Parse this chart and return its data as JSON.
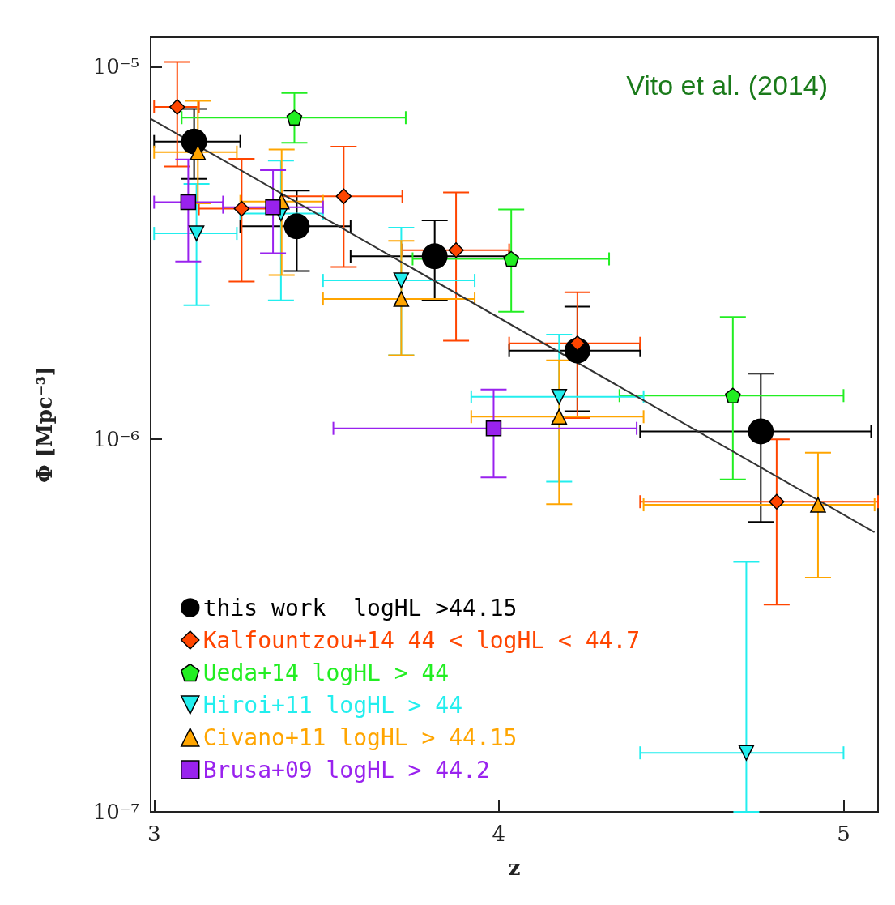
{
  "chart_data": {
    "type": "scatter",
    "xlabel": "z",
    "ylabel": "Φ [Mpc⁻³]",
    "annotations": [
      "Vito et al. (2014)"
    ],
    "xlim": [
      2.99,
      5.1
    ],
    "xticks": [
      3,
      4,
      5
    ],
    "ylim": [
      1e-07,
      1.2e-05
    ],
    "yticks": [
      {
        "value": 1e-07,
        "label": "10⁻⁷"
      },
      {
        "value": 1e-06,
        "label": "10⁻⁶"
      },
      {
        "value": 1e-05,
        "label": "10⁻⁵"
      }
    ],
    "log": "y",
    "grid": false,
    "legend": "bottom left",
    "series": [
      {
        "name": "this work  logHL >44.15",
        "color": "#000000",
        "marker": "circle",
        "x": [
          3.116,
          3.414,
          3.814,
          4.228,
          4.76
        ],
        "values": [
          6.3e-06,
          3.73e-06,
          3.1e-06,
          1.73e-06,
          1.05e-06
        ],
        "errors": [
          [
            5e-06,
            7.7e-06
          ],
          [
            2.83e-06,
            4.65e-06
          ],
          [
            2.36e-06,
            3.87e-06
          ],
          [
            1.19e-06,
            2.27e-06
          ],
          [
            6e-07,
            1.5e-06
          ]
        ],
        "xerrors": [
          [
            3.0,
            3.25
          ],
          [
            3.25,
            3.57
          ],
          [
            3.57,
            4.03
          ],
          [
            4.03,
            4.41
          ],
          [
            4.41,
            5.08
          ]
        ]
      },
      {
        "name": "Kalfountzou+14 44 < logHL < 44.7",
        "color": "#ff4500",
        "marker": "diamond",
        "x": [
          3.067,
          3.254,
          3.55,
          3.876,
          4.228,
          4.806
        ],
        "values": [
          7.8e-06,
          4.16e-06,
          4.49e-06,
          3.22e-06,
          1.81e-06,
          6.8e-07
        ],
        "errors": [
          [
            5.4e-06,
            1.03e-05
          ],
          [
            2.65e-06,
            5.66e-06
          ],
          [
            2.9e-06,
            6.1e-06
          ],
          [
            1.84e-06,
            4.6e-06
          ],
          [
            1.14e-06,
            2.48e-06
          ],
          [
            3.6e-07,
            1e-06
          ]
        ],
        "xerrors": [
          [
            3.0,
            3.13
          ],
          [
            3.13,
            3.37
          ],
          [
            3.37,
            3.72
          ],
          [
            3.72,
            4.03
          ],
          [
            4.03,
            4.41
          ],
          [
            4.41,
            5.1
          ]
        ]
      },
      {
        "name": "Ueda+14 logHL > 44",
        "color": "#22ee22",
        "x": [
          3.407,
          4.036,
          4.679
        ],
        "values": [
          7.3e-06,
          3.05e-06,
          1.31e-06
        ],
        "errors": [
          [
            6.25e-06,
            8.5e-06
          ],
          [
            2.2e-06,
            4.14e-06
          ],
          [
            7.8e-07,
            2.13e-06
          ]
        ],
        "xerrors": [
          [
            3.08,
            3.73
          ],
          [
            3.75,
            4.32
          ],
          [
            4.35,
            5.0
          ]
        ]
      },
      {
        "name": "Hiroi+11 logHL > 44",
        "color": "#22eeee",
        "marker": "triangle-down",
        "x": [
          3.123,
          3.368,
          3.717,
          4.175,
          4.718
        ],
        "values": [
          3.57e-06,
          4.04e-06,
          2.67e-06,
          1.3e-06,
          1.44e-07
        ],
        "errors": [
          [
            2.29e-06,
            4.85e-06
          ],
          [
            2.36e-06,
            5.6e-06
          ],
          [
            1.68e-06,
            3.7e-06
          ],
          [
            7.7e-07,
            1.91e-06
          ],
          [
            1e-07,
            4.69e-07
          ]
        ],
        "xerrors": [
          [
            3.0,
            3.24
          ],
          [
            3.25,
            3.49
          ],
          [
            3.49,
            3.93
          ],
          [
            3.92,
            4.42
          ],
          [
            4.41,
            5.0
          ]
        ]
      },
      {
        "name": "Civano+11 logHL > 44.15",
        "color": "#ffa500",
        "marker": "triangle",
        "x": [
          3.127,
          3.37,
          3.717,
          4.175,
          4.926
        ],
        "values": [
          5.9e-06,
          4.35e-06,
          2.38e-06,
          1.15e-06,
          6.67e-07
        ],
        "errors": [
          [
            4.3e-06,
            8.1e-06
          ],
          [
            2.76e-06,
            6e-06
          ],
          [
            1.68e-06,
            3.41e-06
          ],
          [
            6.7e-07,
            1.63e-06
          ],
          [
            4.25e-07,
            9.2e-07
          ]
        ],
        "xerrors": [
          [
            3.0,
            3.24
          ],
          [
            3.25,
            3.49
          ],
          [
            3.49,
            3.93
          ],
          [
            3.92,
            4.42
          ],
          [
            4.42,
            5.09
          ]
        ]
      },
      {
        "name": "Brusa+09 logHL > 44.2",
        "color": "#9922ee",
        "marker": "square",
        "x": [
          3.099,
          3.345,
          3.985
        ],
        "values": [
          4.33e-06,
          4.2e-06,
          1.07e-06
        ],
        "errors": [
          [
            3e-06,
            5.64e-06
          ],
          [
            3.16e-06,
            5.28e-06
          ],
          [
            7.9e-07,
            1.36e-06
          ]
        ],
        "xerrors": [
          [
            3.0,
            3.2
          ],
          [
            3.2,
            3.49
          ],
          [
            3.52,
            4.4
          ]
        ]
      },
      {
        "type": "line",
        "color": "#333333",
        "marker": "none",
        "x": [
          2.99,
          5.088
        ],
        "values": [
          7.25e-06,
          5.64e-07
        ]
      }
    ]
  }
}
